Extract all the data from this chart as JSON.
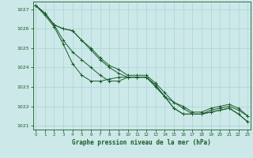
{
  "xlabel": "Graphe pression niveau de la mer (hPa)",
  "bg_color": "#cce8e8",
  "grid_color": "#aad4d4",
  "line_color": "#1a5c2a",
  "ylim": [
    1020.8,
    1027.4
  ],
  "xlim": [
    -0.3,
    23.3
  ],
  "yticks": [
    1021,
    1022,
    1023,
    1024,
    1025,
    1026,
    1027
  ],
  "xticks": [
    0,
    1,
    2,
    3,
    4,
    5,
    6,
    7,
    8,
    9,
    10,
    11,
    12,
    13,
    14,
    15,
    16,
    17,
    18,
    19,
    20,
    21,
    22,
    23
  ],
  "series": [
    [
      1027.2,
      1026.8,
      1026.2,
      1026.0,
      1025.9,
      1025.4,
      1024.9,
      1024.4,
      1024.0,
      1023.7,
      1023.5,
      1023.5,
      1023.5,
      1023.1,
      1022.5,
      1022.2,
      1021.9,
      1021.6,
      1021.6,
      1021.8,
      1021.9,
      1022.0,
      1021.8,
      1021.5
    ],
    [
      1027.2,
      1026.8,
      1026.2,
      1026.0,
      1025.9,
      1025.4,
      1025.0,
      1024.5,
      1024.1,
      1023.9,
      1023.6,
      1023.6,
      1023.6,
      1023.2,
      1022.7,
      1022.2,
      1022.0,
      1021.7,
      1021.7,
      1021.9,
      1022.0,
      1022.1,
      1021.9,
      1021.5
    ],
    [
      1027.2,
      1026.8,
      1026.2,
      1025.4,
      1024.8,
      1024.4,
      1024.0,
      1023.6,
      1023.3,
      1023.3,
      1023.5,
      1023.5,
      1023.5,
      1023.0,
      1022.5,
      1021.9,
      1021.6,
      1021.6,
      1021.6,
      1021.7,
      1021.8,
      1021.9,
      1021.6,
      1021.2
    ],
    [
      1027.2,
      1026.7,
      1026.1,
      1025.2,
      1024.2,
      1023.6,
      1023.3,
      1023.3,
      1023.4,
      1023.5,
      1023.5,
      1023.5,
      1023.5,
      1023.1,
      1022.5,
      1021.9,
      1021.6,
      1021.6,
      1021.6,
      1021.7,
      1021.8,
      1021.9,
      1021.6,
      1021.2
    ]
  ]
}
